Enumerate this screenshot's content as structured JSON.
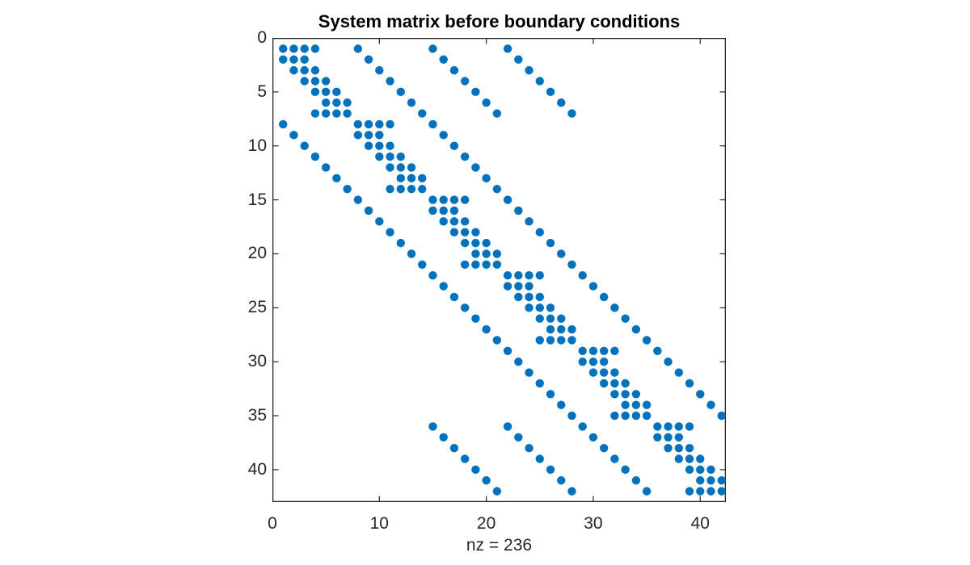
{
  "figure": {
    "background": "#ffffff"
  },
  "chart_data": {
    "type": "scatter",
    "subtype": "spy-sparsity-pattern",
    "title": "System matrix before boundary conditions",
    "xlabel": "nz = 236",
    "nz": 236,
    "matrix_rows": 42,
    "matrix_cols": 42,
    "xlim": [
      0,
      42.4
    ],
    "ylim": [
      0,
      43
    ],
    "y_reversed": true,
    "grid": false,
    "box": true,
    "x_ticks": [
      0,
      10,
      20,
      30,
      40
    ],
    "y_ticks": [
      0,
      5,
      10,
      15,
      20,
      25,
      30,
      35,
      40
    ],
    "marker_color": "#0072BD",
    "axis_color": "#262626",
    "title_color": "#000000",
    "points_format": "[row, col] one entry per nonzero",
    "points": [
      [
        1,
        1
      ],
      [
        1,
        2
      ],
      [
        1,
        3
      ],
      [
        1,
        4
      ],
      [
        1,
        8
      ],
      [
        1,
        15
      ],
      [
        1,
        22
      ],
      [
        2,
        1
      ],
      [
        2,
        2
      ],
      [
        2,
        3
      ],
      [
        2,
        9
      ],
      [
        2,
        16
      ],
      [
        2,
        23
      ],
      [
        3,
        2
      ],
      [
        3,
        3
      ],
      [
        3,
        4
      ],
      [
        3,
        10
      ],
      [
        3,
        17
      ],
      [
        3,
        24
      ],
      [
        4,
        3
      ],
      [
        4,
        4
      ],
      [
        4,
        5
      ],
      [
        4,
        11
      ],
      [
        4,
        18
      ],
      [
        4,
        25
      ],
      [
        5,
        4
      ],
      [
        5,
        5
      ],
      [
        5,
        6
      ],
      [
        5,
        12
      ],
      [
        5,
        19
      ],
      [
        5,
        26
      ],
      [
        6,
        5
      ],
      [
        6,
        6
      ],
      [
        6,
        7
      ],
      [
        6,
        13
      ],
      [
        6,
        20
      ],
      [
        6,
        27
      ],
      [
        7,
        4
      ],
      [
        7,
        5
      ],
      [
        7,
        6
      ],
      [
        7,
        7
      ],
      [
        7,
        14
      ],
      [
        7,
        21
      ],
      [
        7,
        28
      ],
      [
        8,
        1
      ],
      [
        8,
        8
      ],
      [
        8,
        9
      ],
      [
        8,
        10
      ],
      [
        8,
        11
      ],
      [
        8,
        15
      ],
      [
        9,
        2
      ],
      [
        9,
        8
      ],
      [
        9,
        9
      ],
      [
        9,
        10
      ],
      [
        9,
        16
      ],
      [
        10,
        3
      ],
      [
        10,
        9
      ],
      [
        10,
        10
      ],
      [
        10,
        11
      ],
      [
        10,
        17
      ],
      [
        11,
        4
      ],
      [
        11,
        10
      ],
      [
        11,
        11
      ],
      [
        11,
        12
      ],
      [
        11,
        18
      ],
      [
        12,
        5
      ],
      [
        12,
        11
      ],
      [
        12,
        12
      ],
      [
        12,
        13
      ],
      [
        12,
        19
      ],
      [
        13,
        6
      ],
      [
        13,
        12
      ],
      [
        13,
        13
      ],
      [
        13,
        14
      ],
      [
        13,
        20
      ],
      [
        14,
        7
      ],
      [
        14,
        11
      ],
      [
        14,
        12
      ],
      [
        14,
        13
      ],
      [
        14,
        14
      ],
      [
        14,
        21
      ],
      [
        15,
        8
      ],
      [
        15,
        15
      ],
      [
        15,
        16
      ],
      [
        15,
        17
      ],
      [
        15,
        18
      ],
      [
        15,
        22
      ],
      [
        16,
        9
      ],
      [
        16,
        15
      ],
      [
        16,
        16
      ],
      [
        16,
        17
      ],
      [
        16,
        23
      ],
      [
        17,
        10
      ],
      [
        17,
        16
      ],
      [
        17,
        17
      ],
      [
        17,
        18
      ],
      [
        17,
        24
      ],
      [
        18,
        11
      ],
      [
        18,
        17
      ],
      [
        18,
        18
      ],
      [
        18,
        19
      ],
      [
        18,
        25
      ],
      [
        19,
        12
      ],
      [
        19,
        18
      ],
      [
        19,
        19
      ],
      [
        19,
        20
      ],
      [
        19,
        26
      ],
      [
        20,
        13
      ],
      [
        20,
        19
      ],
      [
        20,
        20
      ],
      [
        20,
        21
      ],
      [
        20,
        27
      ],
      [
        21,
        14
      ],
      [
        21,
        18
      ],
      [
        21,
        19
      ],
      [
        21,
        20
      ],
      [
        21,
        21
      ],
      [
        21,
        28
      ],
      [
        22,
        15
      ],
      [
        22,
        22
      ],
      [
        22,
        23
      ],
      [
        22,
        24
      ],
      [
        22,
        25
      ],
      [
        22,
        29
      ],
      [
        23,
        16
      ],
      [
        23,
        22
      ],
      [
        23,
        23
      ],
      [
        23,
        24
      ],
      [
        23,
        30
      ],
      [
        24,
        17
      ],
      [
        24,
        23
      ],
      [
        24,
        24
      ],
      [
        24,
        25
      ],
      [
        24,
        31
      ],
      [
        25,
        18
      ],
      [
        25,
        24
      ],
      [
        25,
        25
      ],
      [
        25,
        26
      ],
      [
        25,
        32
      ],
      [
        26,
        19
      ],
      [
        26,
        25
      ],
      [
        26,
        26
      ],
      [
        26,
        27
      ],
      [
        26,
        33
      ],
      [
        27,
        20
      ],
      [
        27,
        26
      ],
      [
        27,
        27
      ],
      [
        27,
        28
      ],
      [
        27,
        34
      ],
      [
        28,
        21
      ],
      [
        28,
        25
      ],
      [
        28,
        26
      ],
      [
        28,
        27
      ],
      [
        28,
        28
      ],
      [
        28,
        35
      ],
      [
        29,
        22
      ],
      [
        29,
        29
      ],
      [
        29,
        30
      ],
      [
        29,
        31
      ],
      [
        29,
        32
      ],
      [
        29,
        36
      ],
      [
        30,
        23
      ],
      [
        30,
        29
      ],
      [
        30,
        30
      ],
      [
        30,
        31
      ],
      [
        30,
        37
      ],
      [
        31,
        24
      ],
      [
        31,
        30
      ],
      [
        31,
        31
      ],
      [
        31,
        32
      ],
      [
        31,
        38
      ],
      [
        32,
        25
      ],
      [
        32,
        31
      ],
      [
        32,
        32
      ],
      [
        32,
        33
      ],
      [
        32,
        39
      ],
      [
        33,
        26
      ],
      [
        33,
        32
      ],
      [
        33,
        33
      ],
      [
        33,
        34
      ],
      [
        33,
        40
      ],
      [
        34,
        27
      ],
      [
        34,
        33
      ],
      [
        34,
        34
      ],
      [
        34,
        35
      ],
      [
        34,
        41
      ],
      [
        35,
        28
      ],
      [
        35,
        32
      ],
      [
        35,
        33
      ],
      [
        35,
        34
      ],
      [
        35,
        35
      ],
      [
        35,
        42
      ],
      [
        36,
        15
      ],
      [
        36,
        22
      ],
      [
        36,
        29
      ],
      [
        36,
        36
      ],
      [
        36,
        37
      ],
      [
        36,
        38
      ],
      [
        36,
        39
      ],
      [
        37,
        16
      ],
      [
        37,
        23
      ],
      [
        37,
        30
      ],
      [
        37,
        36
      ],
      [
        37,
        37
      ],
      [
        37,
        38
      ],
      [
        38,
        17
      ],
      [
        38,
        24
      ],
      [
        38,
        31
      ],
      [
        38,
        37
      ],
      [
        38,
        38
      ],
      [
        38,
        39
      ],
      [
        39,
        18
      ],
      [
        39,
        25
      ],
      [
        39,
        32
      ],
      [
        39,
        38
      ],
      [
        39,
        39
      ],
      [
        39,
        40
      ],
      [
        40,
        19
      ],
      [
        40,
        26
      ],
      [
        40,
        33
      ],
      [
        40,
        39
      ],
      [
        40,
        40
      ],
      [
        40,
        41
      ],
      [
        41,
        20
      ],
      [
        41,
        27
      ],
      [
        41,
        34
      ],
      [
        41,
        40
      ],
      [
        41,
        41
      ],
      [
        41,
        42
      ],
      [
        42,
        21
      ],
      [
        42,
        28
      ],
      [
        42,
        35
      ],
      [
        42,
        39
      ],
      [
        42,
        40
      ],
      [
        42,
        41
      ],
      [
        42,
        42
      ]
    ]
  }
}
